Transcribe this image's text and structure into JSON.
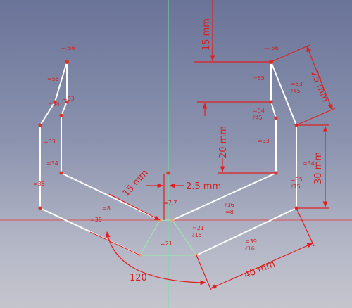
{
  "dimensions": {
    "top_offset": "15 mm",
    "upper_slant": "25 mm",
    "inner_vertical": "20 mm",
    "outer_vertical": "30 mm",
    "center_offset": "2.5 mm",
    "left_arm": "15 mm",
    "bottom_segment": "40 mm",
    "angle": "120 °"
  },
  "constraint_tags": {
    "left_top": "— 56",
    "right_top": "— 56",
    "l55": "=55",
    "l54": "=54",
    "l53": "=53",
    "l33": "=33",
    "l34": "=34",
    "l35": "=35",
    "r55": "=55",
    "r53": "=53",
    "r45a": "⫽45",
    "r54": "=54",
    "r45b": "⫽45",
    "r33": "=33",
    "r34": "=34",
    "r35": "=35",
    "r15a": "⫽15",
    "c77": "=7,7",
    "c8a": "=8",
    "c39a": "=39",
    "c16a": "⫽16",
    "c8b": "=8",
    "c21a": "=21",
    "c15b": "⫽15",
    "c21b": "=21",
    "c39b": "=39",
    "c16b": "⫽16"
  },
  "colors": {
    "dimension": "#e02020",
    "geometry": "#ffffff",
    "construction": "#9fe0b0",
    "point": "#e03020",
    "axis_vertical": "#6fe0a0",
    "axis_horizontal": "#e05050"
  }
}
